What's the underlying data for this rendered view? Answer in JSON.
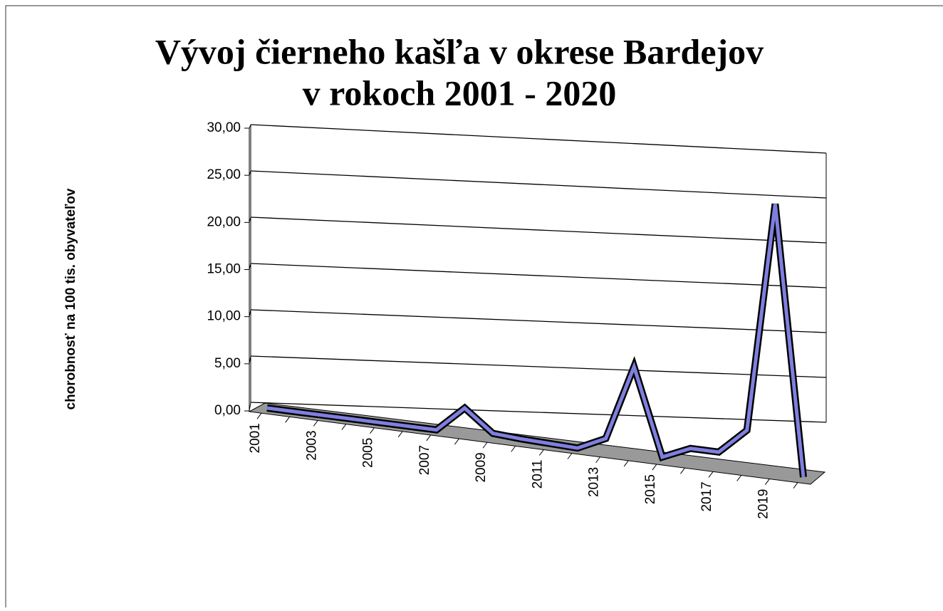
{
  "chart_data": {
    "type": "line",
    "title": "Vývoj čierneho kašľa v okrese Bardejov",
    "subtitle": "v rokoch 2001 - 2020",
    "y_label": "chorobnosť na 100 tis. obyvateľov",
    "categories": [
      "2001",
      null,
      "2003",
      null,
      "2005",
      null,
      "2007",
      null,
      "2009",
      null,
      "2011",
      null,
      "2013",
      null,
      "2015",
      null,
      "2017",
      null,
      "2019",
      null
    ],
    "series": [
      {
        "name": "chorobnosť",
        "color": "#7f7fdf",
        "values": [
          0,
          0,
          0,
          0,
          0,
          0,
          0,
          2.7,
          0.4,
          0.2,
          0.1,
          0,
          1.4,
          9.4,
          0.2,
          1.5,
          1.5,
          4.2,
          28.6,
          0
        ]
      }
    ],
    "ylim": [
      0,
      30
    ],
    "yticks": [
      {
        "value": 0,
        "label": "0,00"
      },
      {
        "value": 5,
        "label": "5,00"
      },
      {
        "value": 10,
        "label": "10,00"
      },
      {
        "value": 15,
        "label": "15,00"
      },
      {
        "value": 20,
        "label": "20,00"
      },
      {
        "value": 25,
        "label": "25,00"
      },
      {
        "value": 30,
        "label": "30,00"
      }
    ],
    "grid": true
  }
}
